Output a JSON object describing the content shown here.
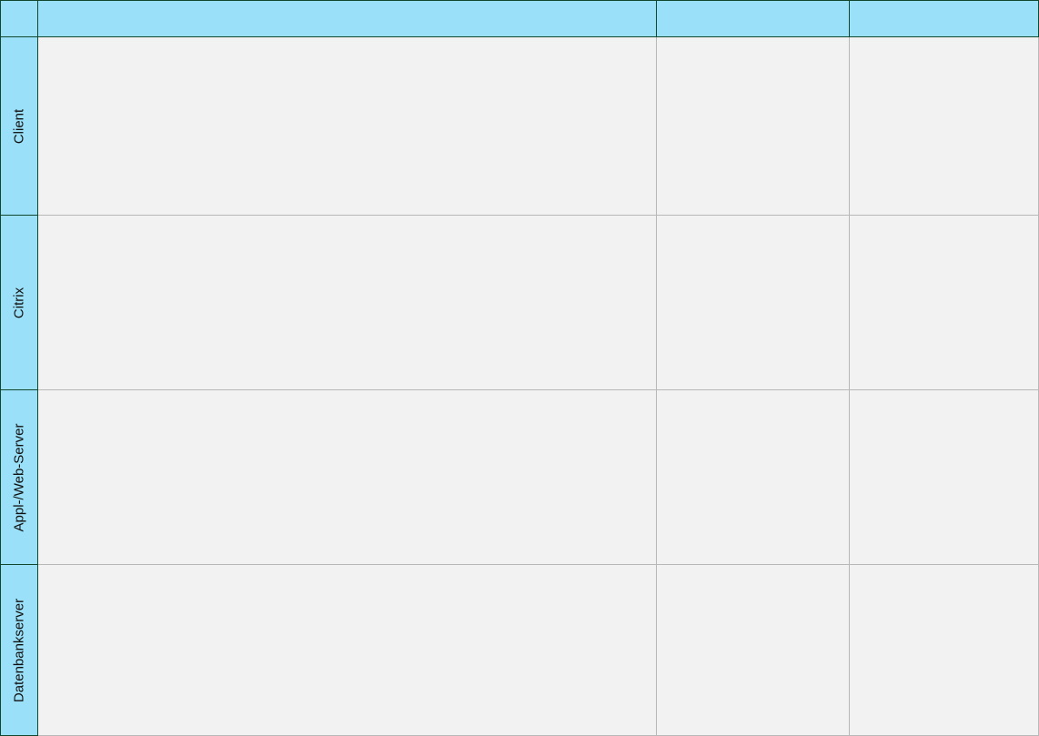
{
  "colors": {
    "header_fill": "#99e0f8",
    "header_border": "#12472f",
    "cell_fill": "#f2f2f2",
    "grid_line": "#b8b8b8"
  },
  "columns": [
    "",
    "",
    "",
    ""
  ],
  "lanes": [
    {
      "label": "Client"
    },
    {
      "label": "Citrix"
    },
    {
      "label": "Appl-/Web-Server"
    },
    {
      "label": "Datenbankserver"
    }
  ]
}
